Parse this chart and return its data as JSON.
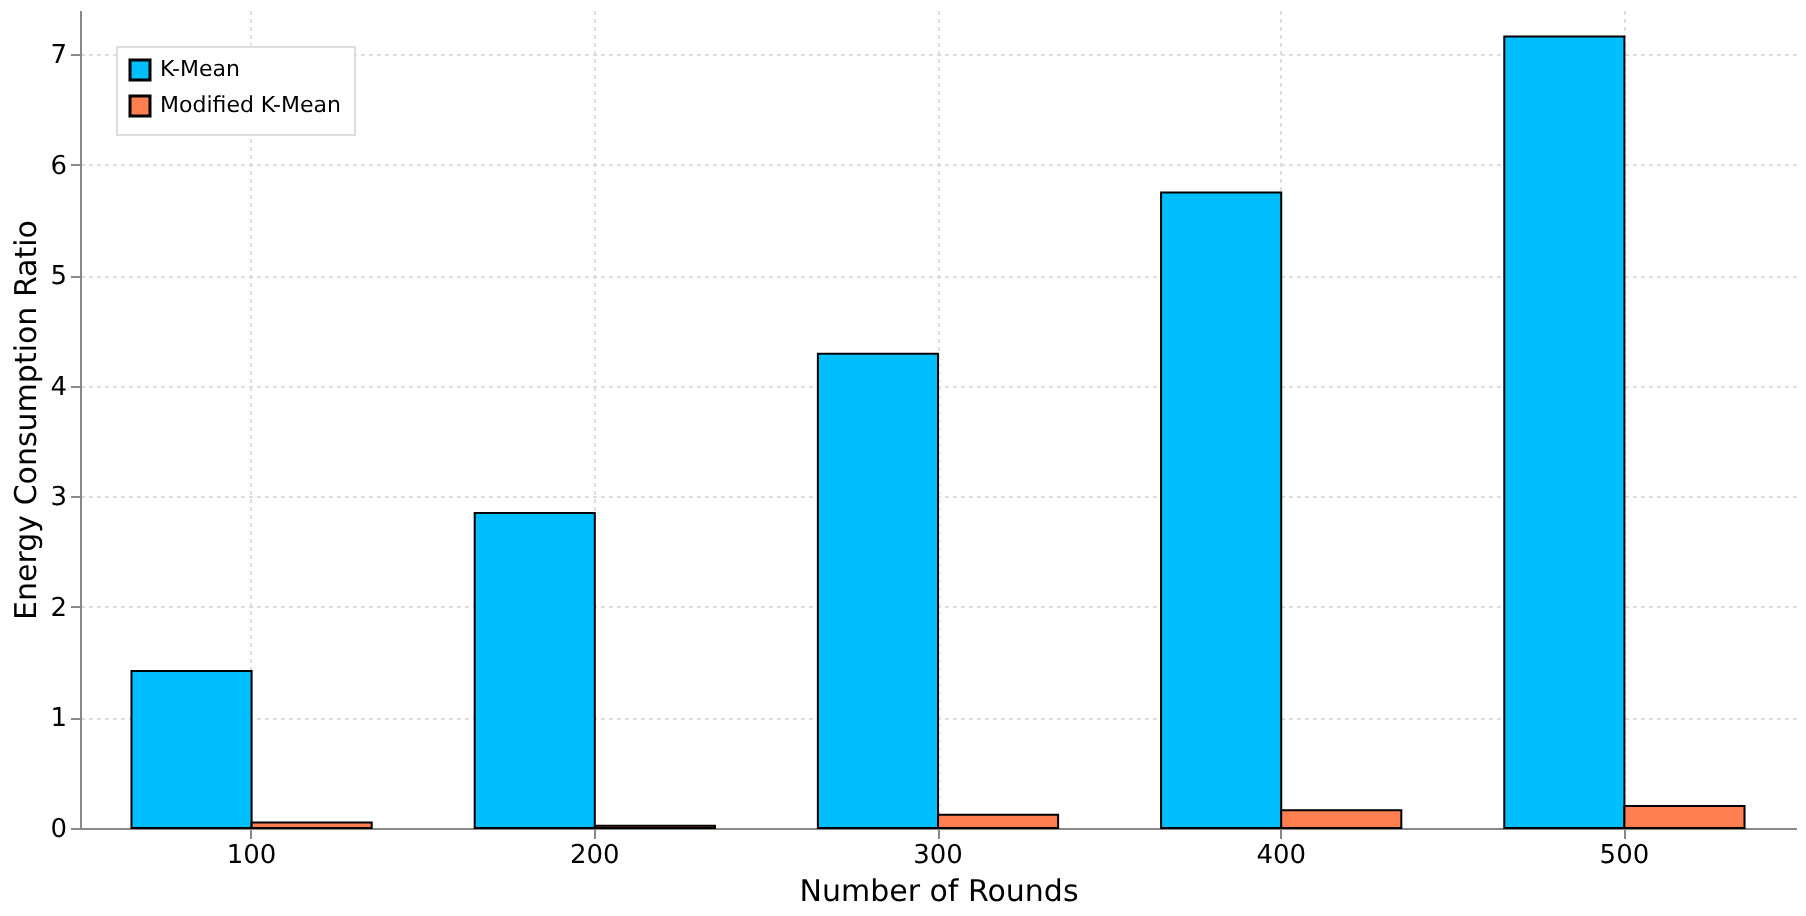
{
  "chart_data": {
    "type": "bar",
    "xlabel": "Number of Rounds",
    "ylabel": "Energy Consumption Ratio",
    "categories": [
      "100",
      "200",
      "300",
      "400",
      "500"
    ],
    "series": [
      {
        "name": "K-Mean",
        "color": "#00bfff",
        "values": [
          1.42,
          2.85,
          4.29,
          5.75,
          7.16
        ]
      },
      {
        "name": "Modified K-Mean",
        "color": "#ff7f50",
        "values": [
          0.05,
          0.02,
          0.12,
          0.16,
          0.2
        ]
      }
    ],
    "ylim": [
      0,
      7.4
    ],
    "yticks": [
      0,
      1,
      2,
      3,
      4,
      5,
      6,
      7
    ],
    "grid": true,
    "legend": "top left"
  }
}
